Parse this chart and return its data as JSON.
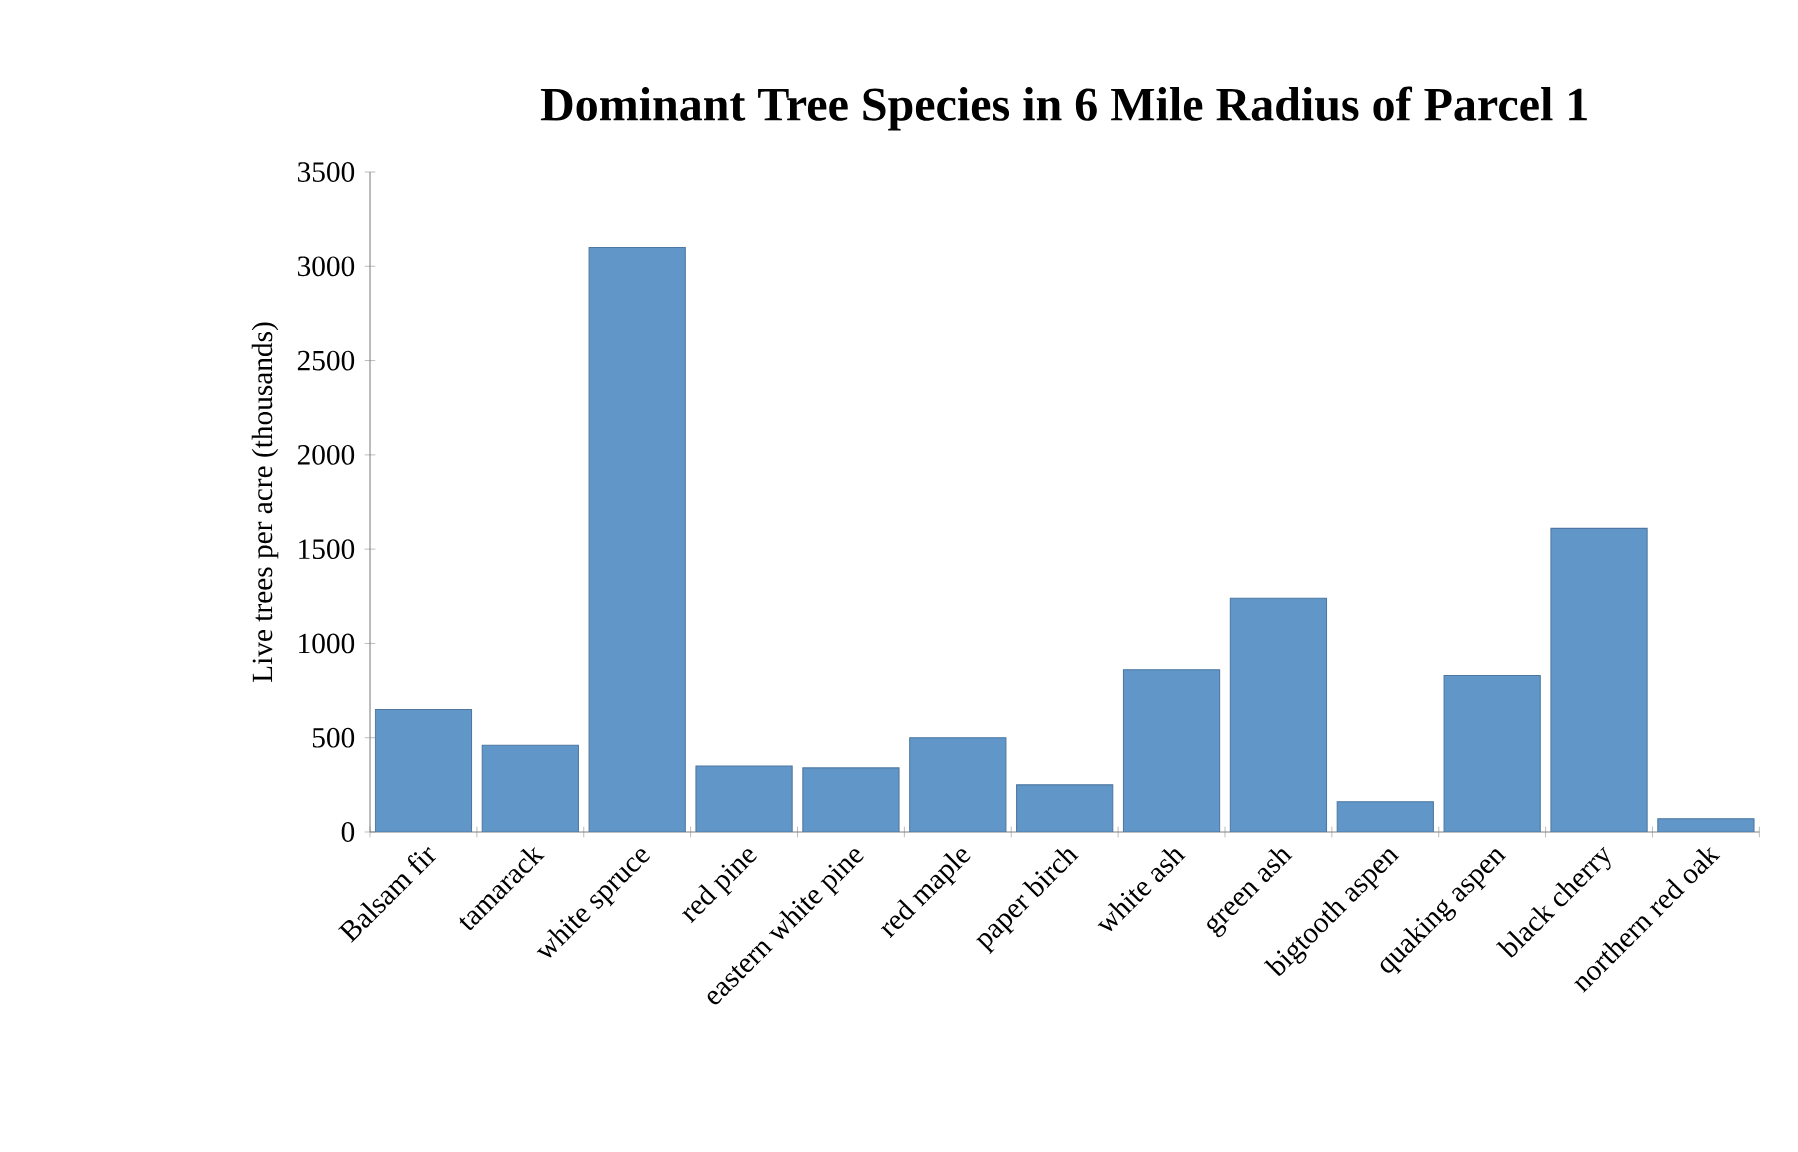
{
  "chart_data": {
    "type": "bar",
    "title": "Dominant Tree Species in 6 Mile Radius of Parcel 1",
    "ylabel": "Live trees per acre (thousands)",
    "categories": [
      "Balsam fir",
      "tamarack",
      "white spruce",
      "red pine",
      "eastern white pine",
      "red maple",
      "paper birch",
      "white ash",
      "green ash",
      "bigtooth aspen",
      "quaking aspen",
      "black cherry",
      "northern red oak"
    ],
    "values": [
      650,
      460,
      3100,
      350,
      340,
      500,
      250,
      860,
      1240,
      160,
      830,
      1610,
      70
    ],
    "color": "#6196c9",
    "ylim": [
      0,
      3500
    ],
    "yticks": [
      0,
      500,
      1000,
      1500,
      2000,
      2500,
      3000,
      3500
    ],
    "grid": false
  }
}
